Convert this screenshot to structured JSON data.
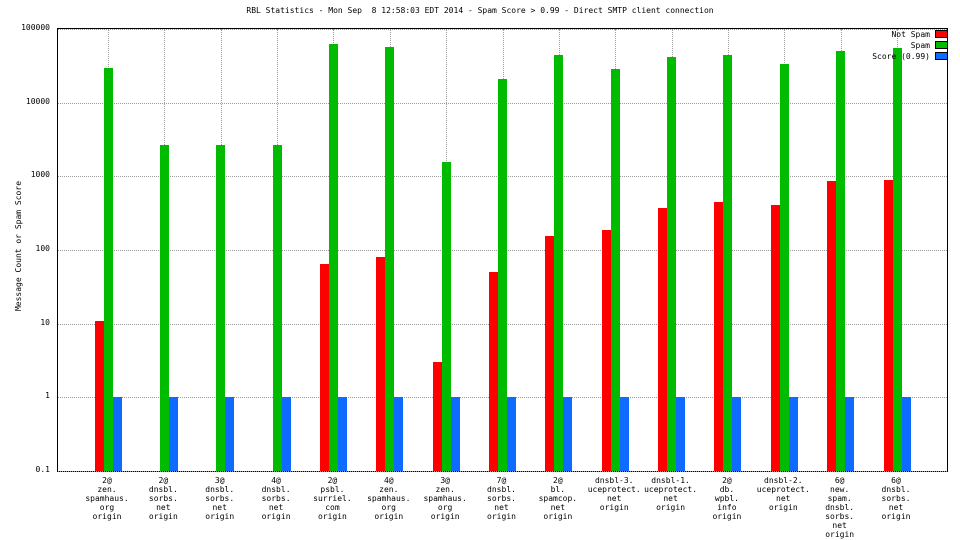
{
  "chart_data": {
    "type": "bar",
    "title": "RBL Statistics - Mon Sep  8 12:58:03 EDT 2014 - Spam Score > 0.99 - Direct SMTP client connection",
    "ylabel": "Message Count or Spam Score",
    "yscale": "log",
    "ylim": [
      0.1,
      100000
    ],
    "ytick_values": [
      0.1,
      1,
      10,
      100,
      1000,
      10000,
      100000
    ],
    "ytick_labels": [
      "0.1",
      "1",
      "10",
      "100",
      "1000",
      "10000",
      "100000"
    ],
    "grid": true,
    "legend_position": "top-right",
    "categories": [
      "2@ zen.spamhaus.org origin",
      "2@ dnsbl.sorbs.net origin",
      "3@ dnsbl.sorbs.net origin",
      "4@ dnsbl.sorbs.net origin",
      "2@ psbl.surriel.com origin",
      "4@ zen.spamhaus.org origin",
      "3@ zen.spamhaus.org origin",
      "7@ dnsbl.sorbs.net origin",
      "2@ bl.spamcop.net origin",
      "dnsbl-3.uceprotect.net origin",
      "dnsbl-1.uceprotect.net origin",
      "2@ db.wpbl.info origin",
      "dnsbl-2.uceprotect.net origin",
      "6@ new.spam.dnsbl.sorbs.net origin",
      "6@ dnsbl.sorbs.net origin"
    ],
    "category_lines": [
      [
        "2@",
        "zen.",
        "spamhaus.",
        "org",
        "origin"
      ],
      [
        "2@",
        "dnsbl.",
        "sorbs.",
        "net",
        "origin"
      ],
      [
        "3@",
        "dnsbl.",
        "sorbs.",
        "net",
        "origin"
      ],
      [
        "4@",
        "dnsbl.",
        "sorbs.",
        "net",
        "origin"
      ],
      [
        "2@",
        "psbl.",
        "surriel.",
        "com",
        "origin"
      ],
      [
        "4@",
        "zen.",
        "spamhaus.",
        "org",
        "origin"
      ],
      [
        "3@",
        "zen.",
        "spamhaus.",
        "org",
        "origin"
      ],
      [
        "7@",
        "dnsbl.",
        "sorbs.",
        "net",
        "origin"
      ],
      [
        "2@",
        "bl.",
        "spamcop.",
        "net",
        "origin"
      ],
      [
        "dnsbl-3.",
        "uceprotect.",
        "net",
        "origin"
      ],
      [
        "dnsbl-1.",
        "uceprotect.",
        "net",
        "origin"
      ],
      [
        "2@",
        "db.",
        "wpbl.",
        "info",
        "origin"
      ],
      [
        "dnsbl-2.",
        "uceprotect.",
        "net",
        "origin"
      ],
      [
        "6@",
        "new.",
        "spam.",
        "dnsbl.",
        "sorbs.",
        "net",
        "origin"
      ],
      [
        "6@",
        "dnsbl.",
        "sorbs.",
        "net",
        "origin"
      ]
    ],
    "series": [
      {
        "name": "Not Spam",
        "color": "#ff0000",
        "values": [
          11,
          null,
          null,
          null,
          65,
          80,
          3,
          50,
          155,
          185,
          370,
          450,
          410,
          870,
          890
        ]
      },
      {
        "name": "Spam",
        "color": "#00bb00",
        "values": [
          30000,
          2700,
          2650,
          2700,
          62000,
          57000,
          1550,
          21000,
          45000,
          29000,
          42000,
          44000,
          34000,
          50000,
          55000
        ]
      },
      {
        "name": "Score (0.99)",
        "color": "#0f6bff",
        "values": [
          1,
          1,
          1,
          1,
          1,
          1,
          1,
          1,
          1,
          1,
          1,
          1,
          1,
          1,
          1
        ]
      }
    ]
  }
}
